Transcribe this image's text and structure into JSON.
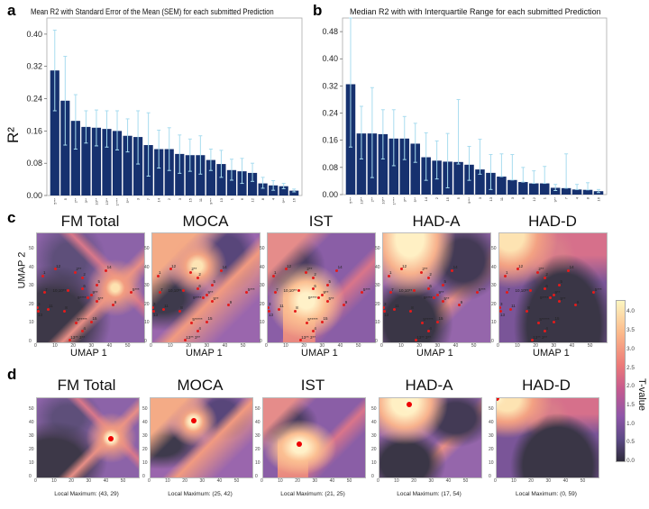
{
  "panel_labels": {
    "a": "a",
    "b": "b",
    "c": "c",
    "d": "d"
  },
  "colorbar": {
    "label": "T-value",
    "ticks": [
      "0.0",
      "0.5",
      "1.0",
      "1.5",
      "2.0",
      "2.5",
      "3.0",
      "3.5",
      "4.0"
    ],
    "range": [
      0,
      4.3
    ]
  },
  "chart_data": [
    {
      "type": "bar",
      "title": "Mean R2 with Standard Error of the Mean (SEM) for each submitted Prediction",
      "ylabel": "R²",
      "ylim": [
        0,
        0.44
      ],
      "yticks": [
        "0.00",
        "0.08",
        "0.16",
        "0.24",
        "0.32",
        "0.40"
      ],
      "categories": [
        "5***",
        "5",
        "2**",
        "3**",
        "10**",
        "13**",
        "1****",
        "5**",
        "3",
        "7",
        "14",
        "2",
        "3",
        "15",
        "11",
        "9***",
        "13",
        "1",
        "6",
        "12",
        "8",
        "4",
        "9**",
        "16"
      ],
      "values": [
        0.31,
        0.235,
        0.185,
        0.17,
        0.168,
        0.165,
        0.16,
        0.148,
        0.145,
        0.125,
        0.115,
        0.115,
        0.103,
        0.1,
        0.1,
        0.088,
        0.078,
        0.063,
        0.06,
        0.056,
        0.03,
        0.025,
        0.023,
        0.012
      ],
      "err_low": [
        0.21,
        0.125,
        0.115,
        0.13,
        0.123,
        0.12,
        0.113,
        0.108,
        0.078,
        0.048,
        0.068,
        0.062,
        0.055,
        0.06,
        0.053,
        0.062,
        0.045,
        0.038,
        0.03,
        0.035,
        0.018,
        0.013,
        0.017,
        0.009
      ],
      "err_high": [
        0.41,
        0.345,
        0.25,
        0.21,
        0.212,
        0.21,
        0.21,
        0.19,
        0.21,
        0.205,
        0.162,
        0.168,
        0.15,
        0.14,
        0.148,
        0.115,
        0.112,
        0.09,
        0.092,
        0.08,
        0.045,
        0.037,
        0.03,
        0.016
      ],
      "bar_color": "#16316f",
      "err_color": "#a8dcef"
    },
    {
      "type": "bar",
      "title": "Median R2 with with Interquartile Range for each submitted Prediction",
      "ylabel": "",
      "ylim": [
        0,
        0.52
      ],
      "yticks": [
        "0.00",
        "0.08",
        "0.16",
        "0.24",
        "0.32",
        "0.40",
        "0.48"
      ],
      "categories": [
        "5***",
        "13**",
        "2**",
        "10**",
        "1****",
        "3**",
        "5**",
        "14",
        "2",
        "15",
        "5",
        "9***",
        "3",
        "13",
        "11",
        "3",
        "6",
        "12",
        "1",
        "9**",
        "7",
        "4",
        "8",
        "16"
      ],
      "values": [
        0.325,
        0.18,
        0.18,
        0.178,
        0.165,
        0.165,
        0.15,
        0.11,
        0.1,
        0.097,
        0.096,
        0.088,
        0.074,
        0.064,
        0.053,
        0.043,
        0.037,
        0.033,
        0.033,
        0.02,
        0.019,
        0.015,
        0.014,
        0.01
      ],
      "err_low": [
        0.14,
        0.105,
        0.05,
        0.105,
        0.085,
        0.103,
        0.095,
        0.042,
        0.046,
        0.02,
        0.09,
        0.042,
        0.06,
        0.015,
        0.053,
        0.043,
        0.037,
        0.033,
        0.033,
        0.012,
        0.019,
        0.015,
        0.014,
        0.006
      ],
      "err_high": [
        0.52,
        0.26,
        0.315,
        0.25,
        0.25,
        0.23,
        0.21,
        0.182,
        0.158,
        0.18,
        0.28,
        0.142,
        0.163,
        0.118,
        0.12,
        0.118,
        0.08,
        0.07,
        0.083,
        0.03,
        0.12,
        0.03,
        0.035,
        0.015
      ],
      "bar_color": "#16316f",
      "err_color": "#a8dcef"
    },
    {
      "type": "heatmap",
      "xlabel": "UMAP 1",
      "ylabel": "UMAP 2",
      "xlim": [
        0,
        59
      ],
      "ylim": [
        0,
        59
      ],
      "xticks": [
        "0",
        "10",
        "20",
        "30",
        "40",
        "50"
      ],
      "yticks": [
        "0",
        "10",
        "20",
        "30",
        "40",
        "50"
      ],
      "panels": [
        "FM Total",
        "MOCA",
        "IST",
        "HAD-A",
        "HAD-D"
      ],
      "points": [
        {
          "label": "1",
          "x": 3,
          "y": 36
        },
        {
          "label": "12",
          "x": 10,
          "y": 39.5
        },
        {
          "label": "2**",
          "x": 21,
          "y": 38
        },
        {
          "label": "2",
          "x": 25,
          "y": 35
        },
        {
          "label": "14",
          "x": 38,
          "y": 39
        },
        {
          "label": "7",
          "x": 4,
          "y": 27
        },
        {
          "label": "10,10**",
          "x": 17,
          "y": 28
        },
        {
          "label": "6",
          "x": 25,
          "y": 29
        },
        {
          "label": "5",
          "x": 33,
          "y": 31
        },
        {
          "label": "9**",
          "x": 30,
          "y": 25.5
        },
        {
          "label": "9****",
          "x": 28,
          "y": 24
        },
        {
          "label": "5**",
          "x": 33,
          "y": 22
        },
        {
          "label": "5***",
          "x": 52,
          "y": 27
        },
        {
          "label": "9",
          "x": 42,
          "y": 20
        },
        {
          "label": "3",
          "x": 0,
          "y": 19
        },
        {
          "label": "13",
          "x": 0.5,
          "y": 17
        },
        {
          "label": "11",
          "x": 6,
          "y": 18
        },
        {
          "label": "8",
          "x": 15,
          "y": 17
        },
        {
          "label": "5*****",
          "x": 21.5,
          "y": 10.5
        },
        {
          "label": "15",
          "x": 30,
          "y": 11
        },
        {
          "label": "4",
          "x": 25,
          "y": 6
        },
        {
          "label": "13** 3**",
          "x": 18,
          "y": 1
        }
      ]
    },
    {
      "type": "heatmap",
      "xlim": [
        0,
        59
      ],
      "ylim": [
        0,
        59
      ],
      "xticks": [
        "0",
        "10",
        "20",
        "30",
        "40",
        "50"
      ],
      "yticks": [
        "0",
        "10",
        "20",
        "30",
        "40",
        "50"
      ],
      "panels": [
        {
          "title": "FM Total",
          "max": [
            43,
            29
          ],
          "caption": "Local Maximum: (43, 29)"
        },
        {
          "title": "MOCA",
          "max": [
            25,
            42
          ],
          "caption": "Local Maximum: (25, 42)"
        },
        {
          "title": "IST",
          "max": [
            21,
            25
          ],
          "caption": "Local Maximum: (21, 25)"
        },
        {
          "title": "HAD-A",
          "max": [
            17,
            54
          ],
          "caption": "Local Maximum: (17, 54)"
        },
        {
          "title": "HAD-D",
          "max": [
            0,
            59
          ],
          "caption": "Local Maximum: (0, 59)"
        }
      ]
    }
  ]
}
